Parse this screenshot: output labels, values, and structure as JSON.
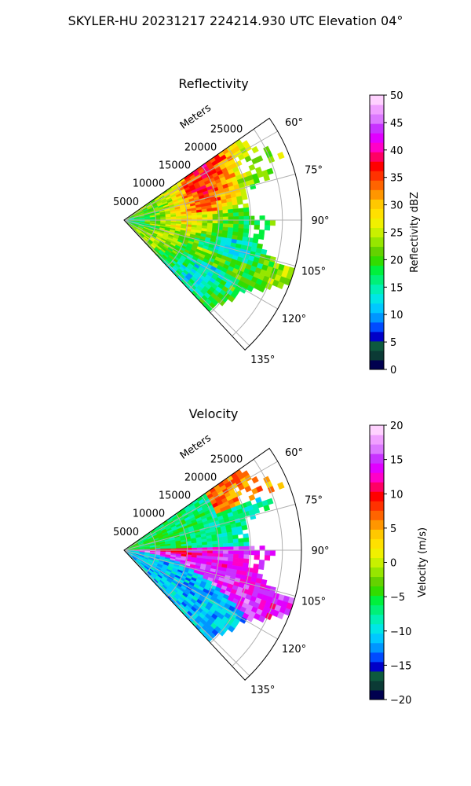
{
  "title": "SKYLER-HU  20231217  224214.930 UTC Elevation 04°",
  "chart_data": [
    {
      "type": "heatmap",
      "projection": "polar-sector",
      "title": "Reflectivity",
      "radial_label": "Meters",
      "radial_ticks": [
        "5000",
        "10000",
        "15000",
        "20000",
        "25000"
      ],
      "radial_tick_values": [
        5000,
        10000,
        15000,
        20000,
        25000
      ],
      "rmax": 28000,
      "angle_range_deg": [
        55,
        137
      ],
      "angle_ticks": [
        "60°",
        "75°",
        "90°",
        "105°",
        "120°",
        "135°"
      ],
      "angle_tick_values": [
        60,
        75,
        90,
        105,
        120,
        135
      ],
      "colorbar": {
        "label": "Reflectivity dBZ",
        "range": [
          0,
          50
        ],
        "ticks": [
          "0",
          "5",
          "10",
          "15",
          "20",
          "25",
          "30",
          "35",
          "40",
          "45",
          "50"
        ],
        "tick_values": [
          0,
          5,
          10,
          15,
          20,
          25,
          30,
          35,
          40,
          45,
          50
        ],
        "colors": [
          "#00004f",
          "#0b3a35",
          "#0d5a3e",
          "#0000c8",
          "#004bff",
          "#0096ff",
          "#00c8ff",
          "#00e6e6",
          "#00f0b4",
          "#00f078",
          "#00f03c",
          "#32dc00",
          "#64d200",
          "#96e600",
          "#c8f000",
          "#f0f000",
          "#ffe000",
          "#ffc800",
          "#ff9600",
          "#ff6400",
          "#ff3200",
          "#ff0000",
          "#ff0064",
          "#ff00c8",
          "#e100ff",
          "#c832ff",
          "#dc78ff",
          "#f0a0ff",
          "#ffd2ff"
        ]
      },
      "field_summary": "mostly 20-30 dBZ with embedded 35-40 dBZ bands north-east; 15-22 dBZ in the south-east sector"
    },
    {
      "type": "heatmap",
      "projection": "polar-sector",
      "title": "Velocity",
      "radial_label": "Meters",
      "radial_ticks": [
        "5000",
        "10000",
        "15000",
        "20000",
        "25000"
      ],
      "radial_tick_values": [
        5000,
        10000,
        15000,
        20000,
        25000
      ],
      "rmax": 28000,
      "angle_range_deg": [
        55,
        137
      ],
      "angle_ticks": [
        "60°",
        "75°",
        "90°",
        "105°",
        "120°",
        "135°"
      ],
      "angle_tick_values": [
        60,
        75,
        90,
        105,
        120,
        135
      ],
      "colorbar": {
        "label": "Velocity (m/s)",
        "range": [
          -20,
          20
        ],
        "ticks": [
          "−20",
          "−15",
          "−10",
          "−5",
          "0",
          "5",
          "10",
          "15",
          "20"
        ],
        "tick_values": [
          -20,
          -15,
          -10,
          -5,
          0,
          5,
          10,
          15,
          20
        ],
        "colors": [
          "#00004f",
          "#0b3a35",
          "#0d5a3e",
          "#0000c8",
          "#004bff",
          "#0096ff",
          "#00c8ff",
          "#00e6e6",
          "#00f0b4",
          "#00f078",
          "#00f03c",
          "#32dc00",
          "#64d200",
          "#96e600",
          "#c8f000",
          "#f0f000",
          "#ffe000",
          "#ffc800",
          "#ff9600",
          "#ff6400",
          "#ff3200",
          "#ff0000",
          "#ff0064",
          "#ff00c8",
          "#e100ff",
          "#c832ff",
          "#dc78ff",
          "#f0a0ff",
          "#ffd2ff"
        ]
      },
      "field_summary": "outbound (+5 to +15 m/s) south-east of radar, inbound (-5 to -12 m/s) to the north-east and far south-east"
    }
  ]
}
